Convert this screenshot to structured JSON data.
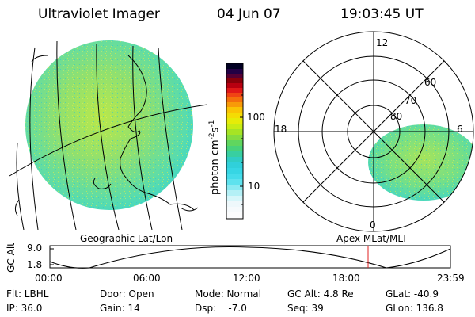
{
  "header": {
    "title": "Ultraviolet Imager",
    "date": "04 Jun 07",
    "time": "19:03:45 UT"
  },
  "colorbar": {
    "label": "photon cm",
    "label_exp1": "-2",
    "label_s": "s",
    "label_exp2": "-1",
    "ticks": [
      "100",
      "10"
    ]
  },
  "polar_plot": {
    "mlt_labels": {
      "top": "12",
      "left": "18",
      "right": "6",
      "bottom": "0"
    },
    "lat_labels": [
      "60",
      "70",
      "80"
    ],
    "caption": "Apex MLat/MLT"
  },
  "geo_plot": {
    "caption": "Geographic Lat/Lon"
  },
  "altitude_strip": {
    "axis_label": "GC Alt",
    "y_ticks": [
      "9.0",
      "1.8"
    ],
    "x_ticks": [
      "00:00",
      "06:00",
      "12:00",
      "18:00",
      "23:59"
    ]
  },
  "info": {
    "flt": "Flt: LBHL",
    "ip": "IP: 36.0",
    "door": "Door: Open",
    "gain": "Gain: 14",
    "mode": "Mode: Normal",
    "dsp": "Dsp:    -7.0",
    "gc_alt": "GC Alt: 4.8 Re",
    "seq": "Seq: 39",
    "glat": "GLat: -40.9",
    "glon": "GLon: 136.8"
  },
  "colors": {
    "aurora_base": "#7fe07f",
    "aurora_yellow": "#d6ec4a",
    "aurora_cyan": "#3fd6c8",
    "time_marker": "#e02020"
  }
}
